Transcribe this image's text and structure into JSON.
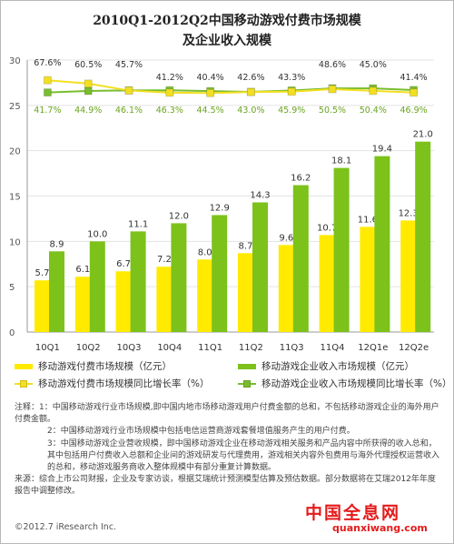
{
  "title_line1": "2010Q1-2012Q2中国移动游戏付费市场规模",
  "title_line2": "及企业收入规模",
  "colors": {
    "payment_bar": "#ffea00",
    "revenue_bar": "#7cc21a",
    "payment_line": "#f3df22",
    "revenue_line": "#79bd2f",
    "payment_label_pct": "#c4b71e",
    "revenue_label_pct": "#6aa41f"
  },
  "legend": {
    "payment_bar": "移动游戏付费市场规模（亿元）",
    "revenue_bar": "移动游戏企业收入市场规模（亿元）",
    "payment_rate": "移动游戏付费市场规模同比增长率（%）",
    "revenue_rate": "移动游戏企业收入市场规模同比增长率（%）"
  },
  "chart_data": {
    "type": "bar",
    "categories": [
      "10Q1",
      "10Q2",
      "10Q3",
      "10Q4",
      "11Q1",
      "11Q2",
      "11Q3",
      "11Q4",
      "12Q1e",
      "12Q2e"
    ],
    "ylim": [
      0,
      30
    ],
    "yticks": [
      0,
      5,
      10,
      15,
      20,
      25,
      30
    ],
    "series": [
      {
        "name": "移动游戏付费市场规模（亿元）",
        "kind": "bar",
        "values": [
          5.7,
          6.1,
          6.7,
          7.2,
          8.0,
          8.7,
          9.6,
          10.7,
          11.6,
          12.3
        ]
      },
      {
        "name": "移动游戏企业收入市场规模（亿元）",
        "kind": "bar",
        "values": [
          8.9,
          10.0,
          11.1,
          12.0,
          12.9,
          14.3,
          16.2,
          18.1,
          19.4,
          21.0
        ]
      },
      {
        "name": "移动游戏付费市场规模同比增长率（%）",
        "kind": "line",
        "values": [
          67.6,
          60.5,
          45.7,
          41.2,
          40.4,
          42.6,
          43.3,
          48.6,
          45.0,
          41.4
        ]
      },
      {
        "name": "移动游戏企业收入市场规模同比增长率（%）",
        "kind": "line",
        "values": [
          41.7,
          44.9,
          46.1,
          46.3,
          44.5,
          43.0,
          45.9,
          50.5,
          50.4,
          46.9
        ]
      }
    ],
    "payment_rate_labels": [
      "67.6%",
      "60.5%",
      "45.7%",
      "41.2%",
      "40.4%",
      "42.6%",
      "43.3%",
      "48.6%",
      "45.0%",
      "41.4%"
    ],
    "revenue_rate_labels": [
      "41.7%",
      "44.9%",
      "46.1%",
      "46.3%",
      "44.5%",
      "43.0%",
      "45.9%",
      "50.5%",
      "50.4%",
      "46.9%"
    ]
  },
  "notes": [
    "注释：1：中国移动游戏行业市场规模,即中国内地市场移动游戏用户付费金额的总和，不包括移动游戏企业的海外用户付费金额。",
    "2：中国移动游戏行业市场规模中包括电信运营商游戏套餐增值服务产生的用户付费。",
    "3：中国移动游戏企业营收规模，即中国移动游戏企业在移动游戏相关服务和产品内容中所获得的收入总和，其中包括用户付费收入总额和企业间的游戏研发与代理费用，游戏相关内容外包费用与海外代理授权运营收入的总和，移动游戏服务商收入整体规模中有部分重复计算数据。",
    "来源：综合上市公司财报，企业及专家访谈，根据艾瑞统计预测模型估算及预估数据。部分数据将在艾瑞2012年年度报告中调整修改。"
  ],
  "copyright": "©2012.7 iResearch Inc.",
  "watermark_cn": "中国全息网",
  "watermark_url": "quanxiwang.com"
}
